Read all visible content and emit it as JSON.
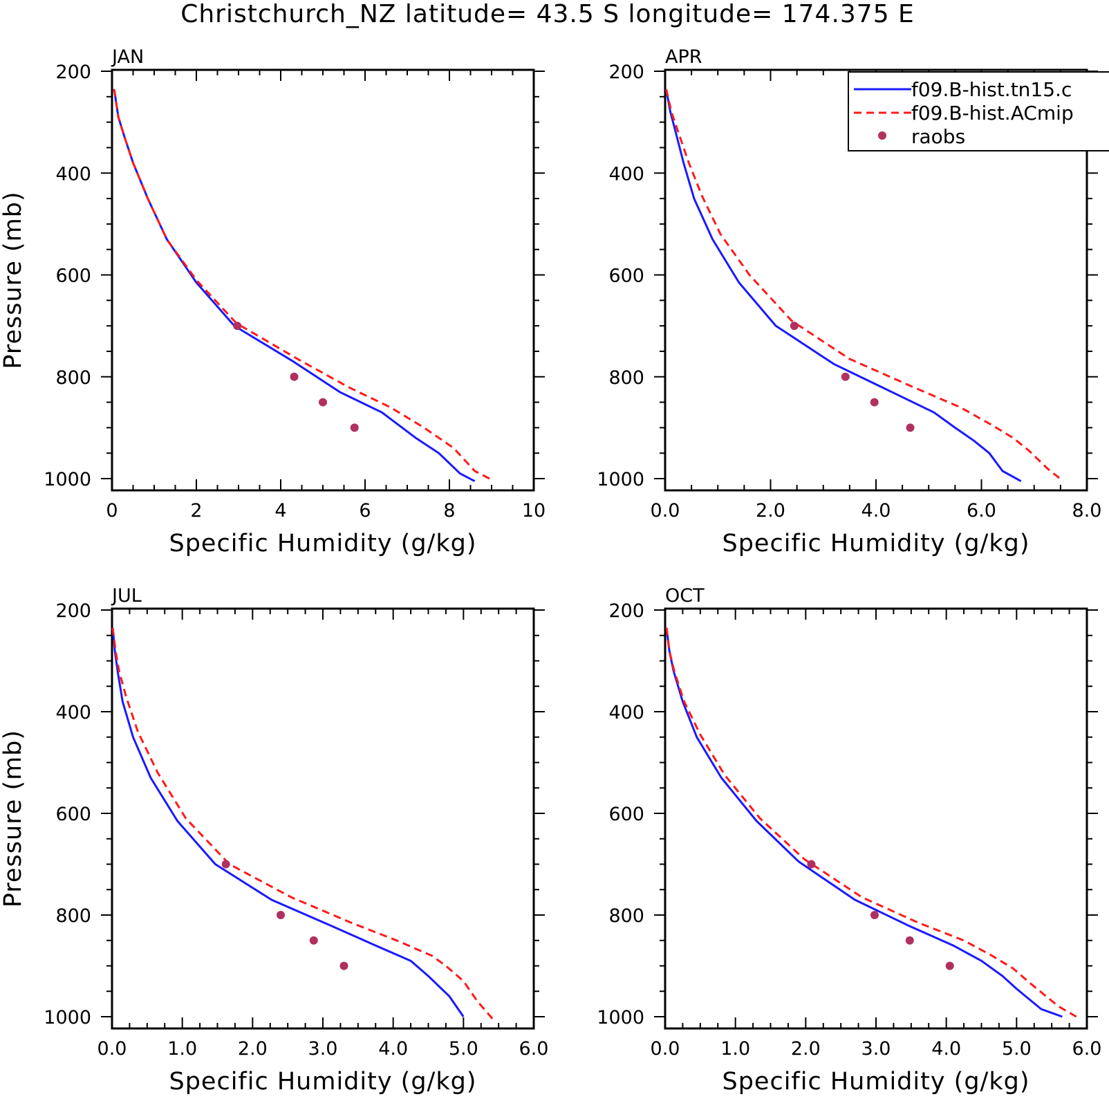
{
  "title": "Christchurch_NZ  latitude= 43.5 S longitude= 174.375 E",
  "colors": {
    "model1": "#1a1aff",
    "model2": "#ff1a1a",
    "obs": "#b03060"
  },
  "legend": {
    "entries": [
      {
        "label": "f09.B-hist.tn15.c",
        "style": "solid-blue"
      },
      {
        "label": "f09.B-hist.ACmip",
        "style": "dashed-red"
      },
      {
        "label": "raobs",
        "style": "dot"
      }
    ]
  },
  "chart_data": [
    {
      "type": "line",
      "panel": "JAN",
      "xlabel": "Specific Humidity (g/kg)",
      "ylabel": "Pressure (mb)",
      "xlim": [
        0,
        10
      ],
      "ylim": [
        200,
        1000
      ],
      "y_inverted": true,
      "xticks": [
        "0",
        "2",
        "4",
        "6",
        "8",
        "10"
      ],
      "yticks": [
        "200",
        "400",
        "600",
        "800",
        "1000"
      ],
      "series": [
        {
          "name": "f09.B-hist.tn15.c",
          "x": [
            0.05,
            0.15,
            0.3,
            0.5,
            0.85,
            1.3,
            2.0,
            2.9,
            4.3,
            5.4,
            6.4,
            7.2,
            7.75,
            8.25,
            8.6
          ],
          "y": [
            235,
            290,
            330,
            380,
            450,
            530,
            615,
            700,
            770,
            830,
            870,
            920,
            950,
            990,
            1005
          ]
        },
        {
          "name": "f09.B-hist.ACmip",
          "x": [
            0.05,
            0.15,
            0.3,
            0.5,
            0.85,
            1.3,
            2.0,
            2.95,
            4.4,
            5.6,
            6.6,
            7.4,
            8.1,
            8.6,
            8.95
          ],
          "y": [
            235,
            290,
            330,
            380,
            450,
            530,
            610,
            695,
            765,
            820,
            860,
            900,
            940,
            985,
            1000
          ]
        },
        {
          "name": "raobs",
          "marker": "dot",
          "x": [
            2.97,
            4.32,
            5.0,
            5.75
          ],
          "y": [
            700,
            800,
            850,
            900
          ]
        }
      ]
    },
    {
      "type": "line",
      "panel": "APR",
      "xlabel": "Specific Humidity (g/kg)",
      "ylabel": "",
      "xlim": [
        0,
        8
      ],
      "ylim": [
        200,
        1000
      ],
      "y_inverted": true,
      "xticks": [
        "0.0",
        "2.0",
        "4.0",
        "6.0",
        "8.0"
      ],
      "yticks": [
        "200",
        "400",
        "600",
        "800",
        "1000"
      ],
      "series": [
        {
          "name": "f09.B-hist.tn15.c",
          "x": [
            0.02,
            0.1,
            0.2,
            0.35,
            0.55,
            0.9,
            1.4,
            2.1,
            3.2,
            4.3,
            5.1,
            5.5,
            5.85,
            6.15,
            6.4,
            6.75
          ],
          "y": [
            235,
            280,
            320,
            380,
            450,
            530,
            615,
            700,
            775,
            830,
            870,
            900,
            925,
            950,
            985,
            1005
          ]
        },
        {
          "name": "f09.B-hist.ACmip",
          "x": [
            0.02,
            0.12,
            0.25,
            0.45,
            0.7,
            1.05,
            1.6,
            2.4,
            3.5,
            4.7,
            5.6,
            6.2,
            6.6,
            6.9,
            7.25,
            7.55
          ],
          "y": [
            235,
            280,
            320,
            380,
            445,
            520,
            600,
            690,
            765,
            820,
            860,
            895,
            920,
            945,
            980,
            1005
          ]
        },
        {
          "name": "raobs",
          "marker": "dot",
          "x": [
            2.45,
            3.42,
            3.97,
            4.65
          ],
          "y": [
            700,
            800,
            850,
            900
          ]
        }
      ]
    },
    {
      "type": "line",
      "panel": "JUL",
      "xlabel": "Specific Humidity (g/kg)",
      "ylabel": "Pressure (mb)",
      "xlim": [
        0,
        6
      ],
      "ylim": [
        200,
        1000
      ],
      "y_inverted": true,
      "xticks": [
        "0.0",
        "1.0",
        "2.0",
        "3.0",
        "4.0",
        "5.0",
        "6.0"
      ],
      "yticks": [
        "200",
        "400",
        "600",
        "800",
        "1000"
      ],
      "series": [
        {
          "name": "f09.B-hist.tn15.c",
          "x": [
            0.01,
            0.04,
            0.08,
            0.15,
            0.3,
            0.55,
            0.93,
            1.47,
            2.27,
            3.1,
            3.75,
            4.25,
            4.5,
            4.8,
            5.0
          ],
          "y": [
            235,
            280,
            320,
            380,
            450,
            530,
            615,
            700,
            770,
            820,
            860,
            890,
            920,
            960,
            1000
          ]
        },
        {
          "name": "f09.B-hist.ACmip",
          "x": [
            0.01,
            0.05,
            0.1,
            0.2,
            0.37,
            0.65,
            1.05,
            1.67,
            2.55,
            3.4,
            4.05,
            4.55,
            4.75,
            5.0,
            5.2,
            5.42
          ],
          "y": [
            235,
            280,
            320,
            370,
            440,
            520,
            610,
            700,
            765,
            815,
            850,
            880,
            900,
            930,
            970,
            1005
          ]
        },
        {
          "name": "raobs",
          "marker": "dot",
          "x": [
            1.62,
            2.4,
            2.87,
            3.3
          ],
          "y": [
            700,
            800,
            850,
            900
          ]
        }
      ]
    },
    {
      "type": "line",
      "panel": "OCT",
      "xlabel": "Specific Humidity (g/kg)",
      "ylabel": "",
      "xlim": [
        0,
        6
      ],
      "ylim": [
        200,
        1000
      ],
      "y_inverted": true,
      "xticks": [
        "0.0",
        "1.0",
        "2.0",
        "3.0",
        "4.0",
        "5.0",
        "6.0"
      ],
      "yticks": [
        "200",
        "400",
        "600",
        "800",
        "1000"
      ],
      "series": [
        {
          "name": "f09.B-hist.tn15.c",
          "x": [
            0.02,
            0.06,
            0.12,
            0.25,
            0.45,
            0.8,
            1.3,
            1.9,
            2.7,
            3.45,
            4.1,
            4.5,
            4.8,
            5.0,
            5.35,
            5.65
          ],
          "y": [
            235,
            280,
            320,
            380,
            450,
            530,
            615,
            695,
            770,
            820,
            860,
            890,
            920,
            945,
            985,
            1000
          ]
        },
        {
          "name": "f09.B-hist.ACmip",
          "x": [
            0.02,
            0.06,
            0.13,
            0.27,
            0.5,
            0.85,
            1.35,
            1.98,
            2.8,
            3.6,
            4.25,
            4.65,
            4.95,
            5.2,
            5.6,
            5.85
          ],
          "y": [
            235,
            280,
            320,
            380,
            445,
            525,
            610,
            690,
            765,
            815,
            850,
            880,
            905,
            935,
            980,
            1000
          ]
        },
        {
          "name": "raobs",
          "marker": "dot",
          "x": [
            2.08,
            2.98,
            3.48,
            4.05
          ],
          "y": [
            700,
            800,
            850,
            900
          ]
        }
      ]
    }
  ]
}
